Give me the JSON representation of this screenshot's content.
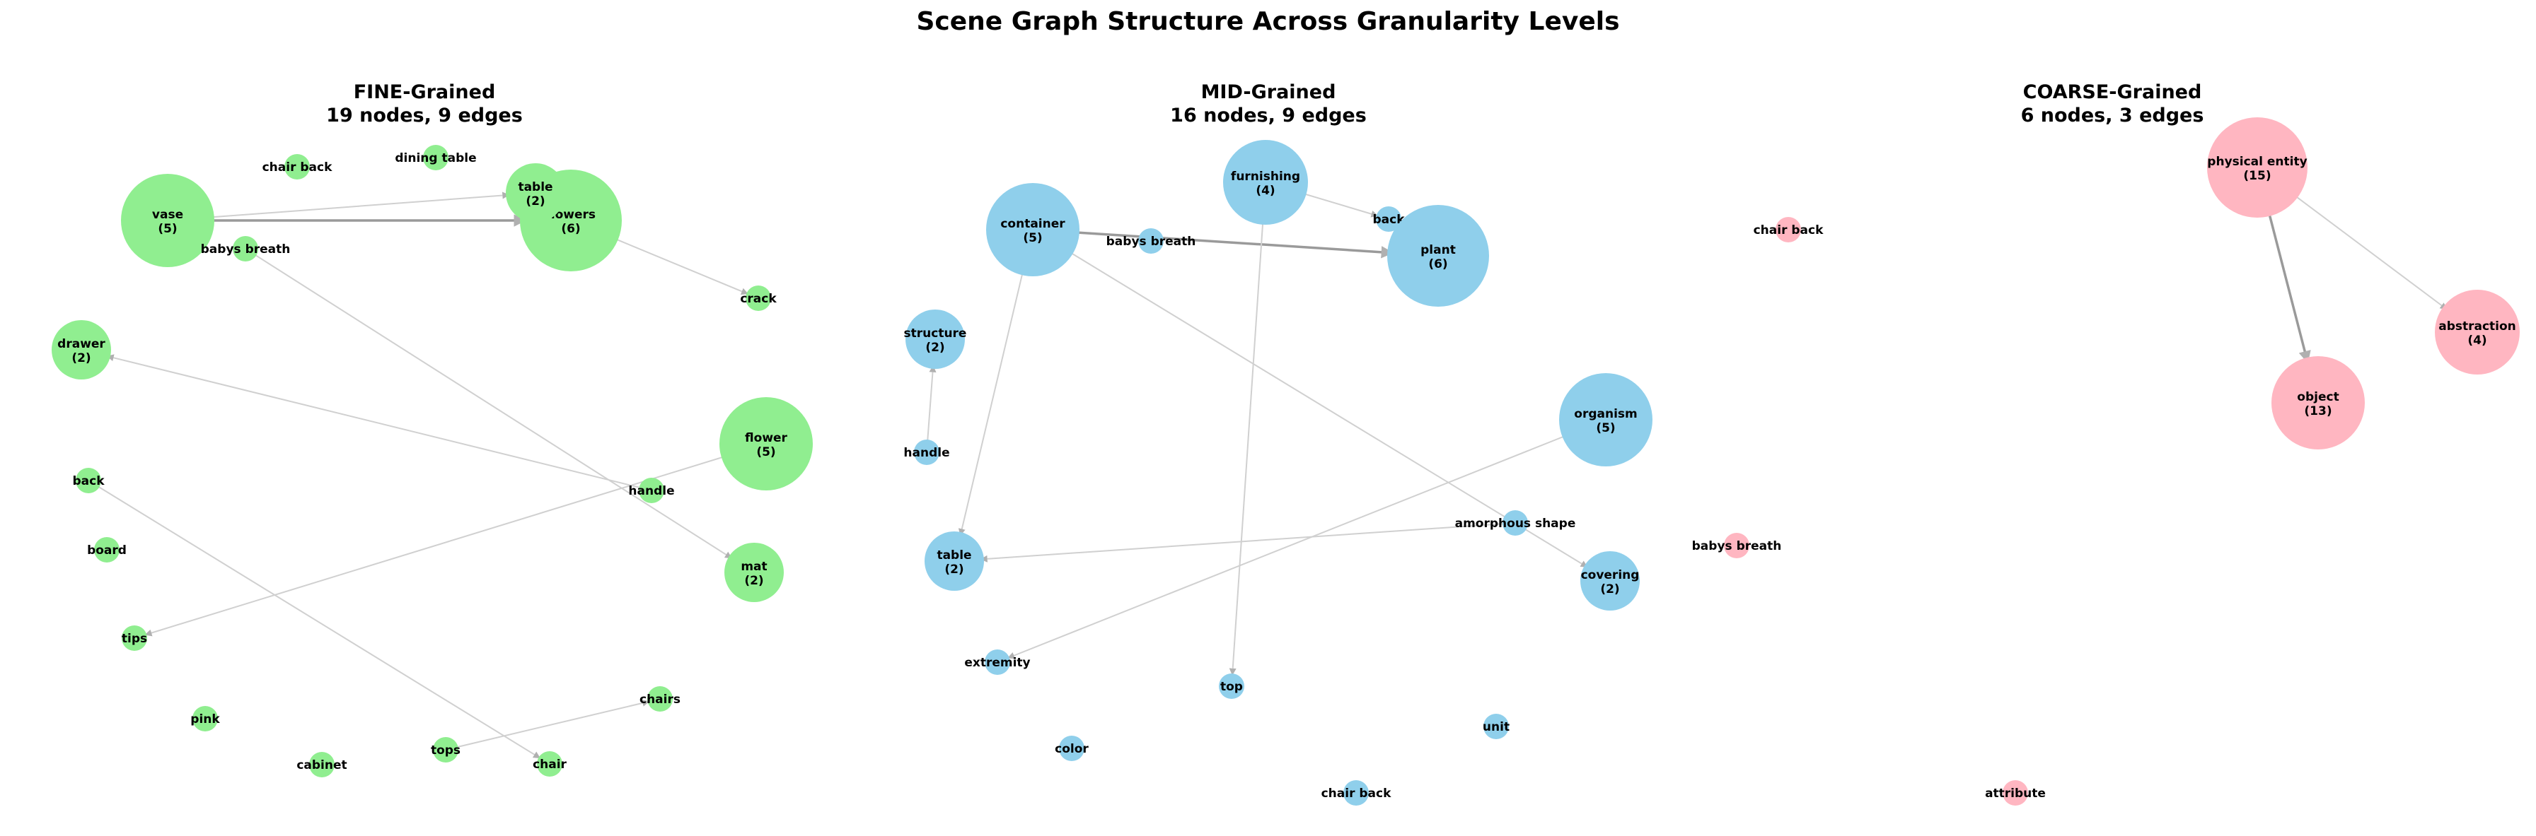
{
  "title": "Scene Graph Structure Across Granularity Levels",
  "panels": [
    {
      "id": "fine",
      "title": "FINE-Grained",
      "subtitle": "19 nodes, 9 edges",
      "node_color": "#90ee90",
      "nodes": [
        {
          "id": "vase",
          "label": "vase",
          "count": 5
        },
        {
          "id": "flowers",
          "label": "flowers",
          "count": 6
        },
        {
          "id": "table",
          "label": "table",
          "count": 2
        },
        {
          "id": "chair_back",
          "label": "chair back",
          "count": 1
        },
        {
          "id": "dining_table",
          "label": "dining table",
          "count": 1
        },
        {
          "id": "babys_breath",
          "label": "babys breath",
          "count": 1
        },
        {
          "id": "crack",
          "label": "crack",
          "count": 1
        },
        {
          "id": "drawer",
          "label": "drawer",
          "count": 2
        },
        {
          "id": "flower",
          "label": "flower",
          "count": 5
        },
        {
          "id": "back",
          "label": "back",
          "count": 1
        },
        {
          "id": "handle",
          "label": "handle",
          "count": 1
        },
        {
          "id": "board",
          "label": "board",
          "count": 1
        },
        {
          "id": "mat",
          "label": "mat",
          "count": 2
        },
        {
          "id": "tips",
          "label": "tips",
          "count": 1
        },
        {
          "id": "chairs",
          "label": "chairs",
          "count": 1
        },
        {
          "id": "pink",
          "label": "pink",
          "count": 1
        },
        {
          "id": "tops",
          "label": "tops",
          "count": 1
        },
        {
          "id": "cabinet",
          "label": "cabinet",
          "count": 1
        },
        {
          "id": "chair",
          "label": "chair",
          "count": 1
        }
      ],
      "edges": [
        {
          "from": "vase",
          "to": "table",
          "weight": 1
        },
        {
          "from": "vase",
          "to": "flowers",
          "weight": 2
        },
        {
          "from": "flowers",
          "to": "crack",
          "weight": 1
        },
        {
          "from": "babys_breath",
          "to": "mat",
          "weight": 1
        },
        {
          "from": "handle",
          "to": "drawer",
          "weight": 1
        },
        {
          "from": "flower",
          "to": "tips",
          "weight": 1
        },
        {
          "from": "back",
          "to": "chair",
          "weight": 1
        },
        {
          "from": "tops",
          "to": "chairs",
          "weight": 1
        }
      ]
    },
    {
      "id": "mid",
      "title": "MID-Grained",
      "subtitle": "16 nodes, 9 edges",
      "node_color": "#8fcfeb",
      "nodes": [
        {
          "id": "container",
          "label": "container",
          "count": 5
        },
        {
          "id": "babys_breath",
          "label": "babys breath",
          "count": 1
        },
        {
          "id": "furnishing",
          "label": "furnishing",
          "count": 4
        },
        {
          "id": "back",
          "label": "back",
          "count": 1
        },
        {
          "id": "plant",
          "label": "plant",
          "count": 6
        },
        {
          "id": "structure",
          "label": "structure",
          "count": 2
        },
        {
          "id": "handle",
          "label": "handle",
          "count": 1
        },
        {
          "id": "organism",
          "label": "organism",
          "count": 5
        },
        {
          "id": "amorphous_shape",
          "label": "amorphous shape",
          "count": 1
        },
        {
          "id": "table",
          "label": "table",
          "count": 2
        },
        {
          "id": "covering",
          "label": "covering",
          "count": 2
        },
        {
          "id": "extremity",
          "label": "extremity",
          "count": 1
        },
        {
          "id": "top",
          "label": "top",
          "count": 1
        },
        {
          "id": "unit",
          "label": "unit",
          "count": 1
        },
        {
          "id": "color",
          "label": "color",
          "count": 1
        },
        {
          "id": "chair_back",
          "label": "chair back",
          "count": 1
        }
      ],
      "edges": [
        {
          "from": "container",
          "to": "plant",
          "weight": 2
        },
        {
          "from": "container",
          "to": "table",
          "weight": 1
        },
        {
          "from": "container",
          "to": "covering",
          "weight": 1
        },
        {
          "from": "furnishing",
          "to": "back",
          "weight": 1
        },
        {
          "from": "furnishing",
          "to": "top",
          "weight": 1
        },
        {
          "from": "handle",
          "to": "structure",
          "weight": 1
        },
        {
          "from": "organism",
          "to": "extremity",
          "weight": 1
        },
        {
          "from": "amorphous_shape",
          "to": "table",
          "weight": 1
        }
      ]
    },
    {
      "id": "coarse",
      "title": "COARSE-Grained",
      "subtitle": "6 nodes, 3 edges",
      "node_color": "#ffb6c1",
      "nodes": [
        {
          "id": "physical_entity",
          "label": "physical entity",
          "count": 15
        },
        {
          "id": "chair_back",
          "label": "chair back",
          "count": 1
        },
        {
          "id": "abstraction",
          "label": "abstraction",
          "count": 4
        },
        {
          "id": "object",
          "label": "object",
          "count": 13
        },
        {
          "id": "babys_breath",
          "label": "babys breath",
          "count": 1
        },
        {
          "id": "attribute",
          "label": "attribute",
          "count": 1
        }
      ],
      "edges": [
        {
          "from": "physical_entity",
          "to": "object",
          "weight": 2
        },
        {
          "from": "physical_entity",
          "to": "abstraction",
          "weight": 1
        }
      ]
    }
  ]
}
